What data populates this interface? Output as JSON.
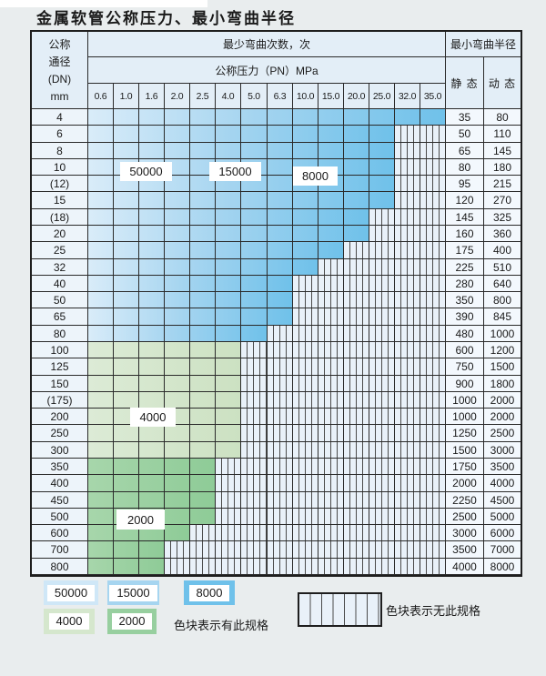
{
  "title": "金属软管公称压力、最小弯曲半径",
  "table": {
    "dn_header_lines": [
      "公称",
      "通径",
      "(DN)",
      "mm"
    ],
    "bend_cycles_header": "最少弯曲次数，次",
    "pressure_header": "公称压力（PN）MPa",
    "pressure_columns": [
      "0.6",
      "1.0",
      "1.6",
      "2.0",
      "2.5",
      "4.0",
      "5.0",
      "6.3",
      "10.0",
      "15.0",
      "20.0",
      "25.0",
      "32.0",
      "35.0"
    ],
    "radius_header": "最小弯曲半径",
    "static_label": "静 态",
    "dynamic_label": "动 态",
    "rows": [
      {
        "dn": "4",
        "colored": 14,
        "zone": "blue",
        "static": "35",
        "dynamic": "80"
      },
      {
        "dn": "6",
        "colored": 12,
        "zone": "blue",
        "static": "50",
        "dynamic": "110"
      },
      {
        "dn": "8",
        "colored": 12,
        "zone": "blue",
        "static": "65",
        "dynamic": "145"
      },
      {
        "dn": "10",
        "colored": 12,
        "zone": "blue",
        "static": "80",
        "dynamic": "180"
      },
      {
        "dn": "(12)",
        "colored": 12,
        "zone": "blue",
        "static": "95",
        "dynamic": "215"
      },
      {
        "dn": "15",
        "colored": 12,
        "zone": "blue",
        "static": "120",
        "dynamic": "270"
      },
      {
        "dn": "(18)",
        "colored": 11,
        "zone": "blue",
        "static": "145",
        "dynamic": "325"
      },
      {
        "dn": "20",
        "colored": 11,
        "zone": "blue",
        "static": "160",
        "dynamic": "360"
      },
      {
        "dn": "25",
        "colored": 10,
        "zone": "blue",
        "static": "175",
        "dynamic": "400"
      },
      {
        "dn": "32",
        "colored": 9,
        "zone": "blue",
        "static": "225",
        "dynamic": "510"
      },
      {
        "dn": "40",
        "colored": 8,
        "zone": "blue",
        "static": "280",
        "dynamic": "640"
      },
      {
        "dn": "50",
        "colored": 8,
        "zone": "blue",
        "static": "350",
        "dynamic": "800"
      },
      {
        "dn": "65",
        "colored": 8,
        "zone": "blue",
        "static": "390",
        "dynamic": "845"
      },
      {
        "dn": "80",
        "colored": 7,
        "zone": "blue",
        "static": "480",
        "dynamic": "1000"
      },
      {
        "dn": "100",
        "colored": 6,
        "zone": "green4000",
        "static": "600",
        "dynamic": "1200"
      },
      {
        "dn": "125",
        "colored": 6,
        "zone": "green4000",
        "static": "750",
        "dynamic": "1500"
      },
      {
        "dn": "150",
        "colored": 6,
        "zone": "green4000",
        "static": "900",
        "dynamic": "1800"
      },
      {
        "dn": "(175)",
        "colored": 6,
        "zone": "green4000",
        "static": "1000",
        "dynamic": "2000"
      },
      {
        "dn": "200",
        "colored": 6,
        "zone": "green4000",
        "static": "1000",
        "dynamic": "2000"
      },
      {
        "dn": "250",
        "colored": 6,
        "zone": "green4000",
        "static": "1250",
        "dynamic": "2500"
      },
      {
        "dn": "300",
        "colored": 6,
        "zone": "green4000",
        "static": "1500",
        "dynamic": "3000"
      },
      {
        "dn": "350",
        "colored": 5,
        "zone": "green2000",
        "static": "1750",
        "dynamic": "3500"
      },
      {
        "dn": "400",
        "colored": 5,
        "zone": "green2000",
        "static": "2000",
        "dynamic": "4000"
      },
      {
        "dn": "450",
        "colored": 5,
        "zone": "green2000",
        "static": "2250",
        "dynamic": "4500"
      },
      {
        "dn": "500",
        "colored": 5,
        "zone": "green2000",
        "static": "2500",
        "dynamic": "5000"
      },
      {
        "dn": "600",
        "colored": 4,
        "zone": "green2000",
        "static": "3000",
        "dynamic": "6000"
      },
      {
        "dn": "700",
        "colored": 3,
        "zone": "green2000",
        "static": "3500",
        "dynamic": "7000"
      },
      {
        "dn": "800",
        "colored": 3,
        "zone": "green2000",
        "static": "4000",
        "dynamic": "8000"
      }
    ],
    "region_labels": [
      {
        "id": "label-50000",
        "text": "50000"
      },
      {
        "id": "label-15000",
        "text": "15000"
      },
      {
        "id": "label-8000",
        "text": "8000"
      },
      {
        "id": "label-4000",
        "text": "4000"
      },
      {
        "id": "label-2000",
        "text": "2000"
      }
    ]
  },
  "legend": {
    "items": [
      {
        "label": "50000",
        "color": "#cfe7f7"
      },
      {
        "label": "15000",
        "color": "#a6d5f0"
      },
      {
        "label": "8000",
        "color": "#6fc1ea"
      },
      {
        "label": "4000",
        "color": "#d5e7cd"
      },
      {
        "label": "2000",
        "color": "#97cf9f"
      }
    ],
    "note_available": "色块表示有此规格",
    "note_unavailable": "色块表示无此规格"
  },
  "colors": {
    "blue_50000": "#cfe7f7",
    "blue_15000": "#a6d5f0",
    "blue_8000": "#6fc1ea",
    "green_4000": "#d5e7cd",
    "green_2000": "#97cf9f",
    "hatch_background": "#e9f1f9",
    "grid_line": "#2a2a2a"
  }
}
